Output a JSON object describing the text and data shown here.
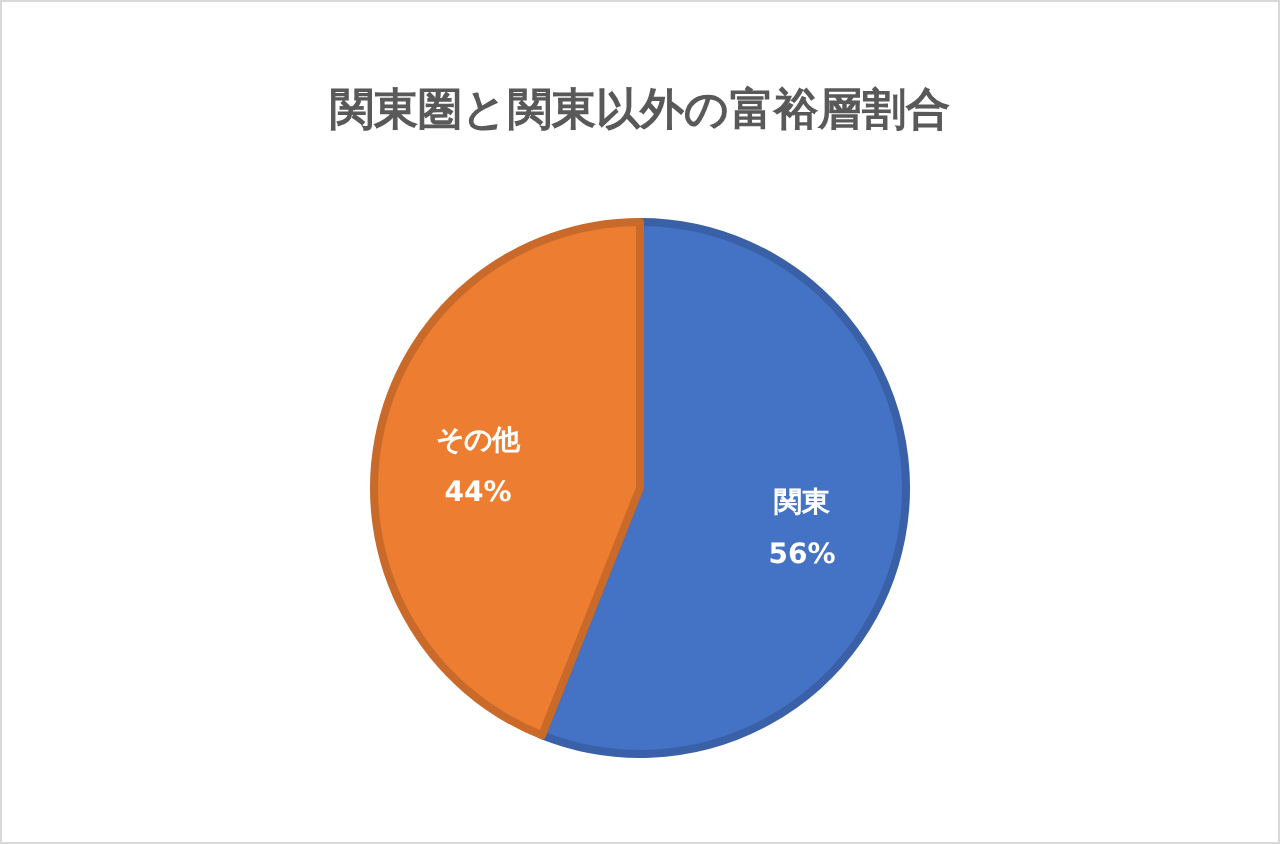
{
  "chart_data": {
    "type": "pie",
    "title": "関東圏と関東以外の富裕層割合",
    "categories": [
      "関東",
      "その他"
    ],
    "values": [
      56,
      44
    ],
    "colors": [
      "#4472c4",
      "#ed7d31"
    ],
    "value_labels": [
      "56%",
      "44%"
    ]
  }
}
